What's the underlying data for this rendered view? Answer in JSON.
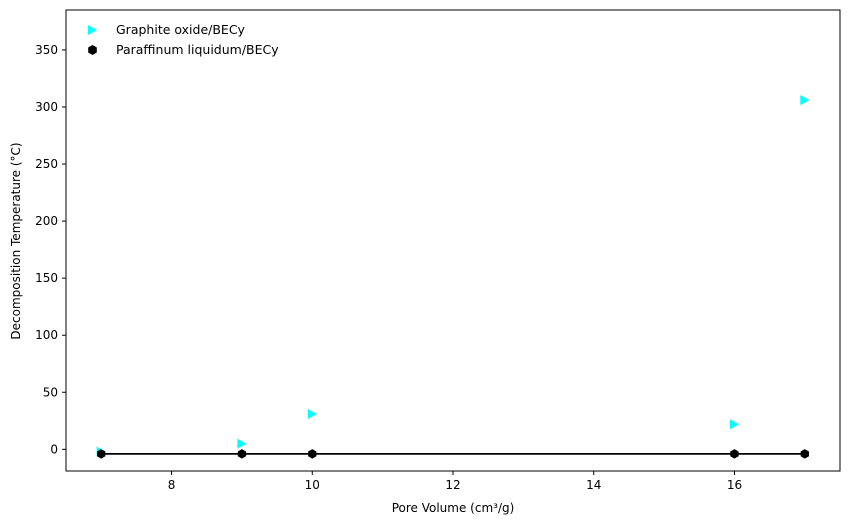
{
  "chart_data": {
    "type": "scatter",
    "title": "",
    "xlabel": "Pore Volume (cm³/g)",
    "ylabel": "Decomposition Temperature (°C)",
    "xlim": [
      6.5,
      17.5
    ],
    "ylim": [
      -19,
      385
    ],
    "xticks": [
      8,
      10,
      12,
      14,
      16
    ],
    "yticks": [
      0,
      50,
      100,
      150,
      200,
      250,
      300,
      350
    ],
    "grid": false,
    "legend_position": "top-left",
    "series": [
      {
        "name": "Graphite oxide/BECy",
        "marker": "triangle-right",
        "color": "#00ffff",
        "line": false,
        "x": [
          7,
          9,
          10,
          16,
          17
        ],
        "y": [
          -2,
          5,
          31,
          22,
          306
        ]
      },
      {
        "name": "Paraffinum liquidum/BECy",
        "marker": "hexagon",
        "color": "#000000",
        "line": true,
        "x": [
          7,
          9,
          10,
          16,
          17
        ],
        "y": [
          -4,
          -4,
          -4,
          -4,
          -4
        ]
      }
    ]
  }
}
